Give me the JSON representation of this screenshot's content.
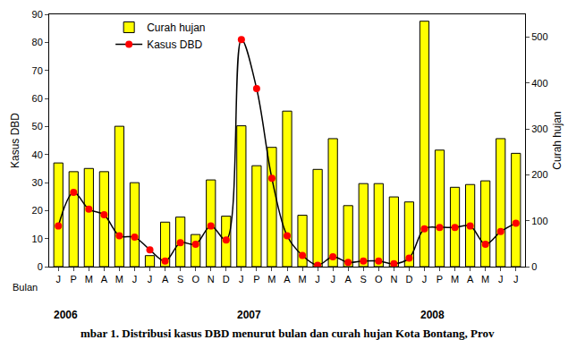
{
  "chart_data": {
    "type": "bar_line",
    "categories": [
      "J",
      "P",
      "M",
      "A",
      "M",
      "J",
      "J",
      "A",
      "S",
      "O",
      "N",
      "D",
      "J",
      "P",
      "M",
      "A",
      "M",
      "J",
      "J",
      "A",
      "S",
      "O",
      "N",
      "D",
      "J",
      "P",
      "M",
      "A",
      "M",
      "J",
      "J"
    ],
    "xlabel": "Bulan",
    "ylabel": "Kasus DBD",
    "y2label": "Curah hujan",
    "caption": "mbar 1. Distribusi kasus DBD menurut bulan dan curah hujan Kota Bontang, Prov",
    "annotations": [
      {
        "text": "2006",
        "category": 0
      },
      {
        "text": "2007",
        "category": 12
      },
      {
        "text": "2008",
        "category": 24
      }
    ],
    "series": [
      {
        "name": "Curah hujan",
        "type": "bar",
        "axis": "y2",
        "color": "#ffff00",
        "values": [
          226,
          207,
          214,
          207,
          306,
          183,
          24,
          97,
          108,
          70,
          189,
          110,
          307,
          220,
          260,
          339,
          112,
          212,
          279,
          133,
          181,
          181,
          152,
          141,
          535,
          254,
          173,
          179,
          187,
          279,
          247
        ]
      },
      {
        "name": "Kasus DBD",
        "type": "line",
        "color": "#ff0000",
        "marker": "circle",
        "line_style": "smooth",
        "values": [
          14.5,
          26.5,
          20.5,
          18.5,
          11,
          10.5,
          6,
          2,
          8.5,
          8,
          14.5,
          9.5,
          81,
          63.5,
          31.5,
          11,
          4,
          0.5,
          3.5,
          1.5,
          2,
          2,
          1,
          3,
          13.5,
          14,
          14,
          14.5,
          8,
          12.5,
          15.5
        ]
      }
    ],
    "ylim": [
      0,
      90
    ],
    "yticks": [
      0,
      10,
      20,
      30,
      40,
      50,
      60,
      70,
      80,
      90
    ],
    "y2lim": [
      0,
      550
    ],
    "y2ticks": [
      0,
      100,
      200,
      300,
      400,
      500
    ],
    "grid": false,
    "legend": "top-left"
  }
}
